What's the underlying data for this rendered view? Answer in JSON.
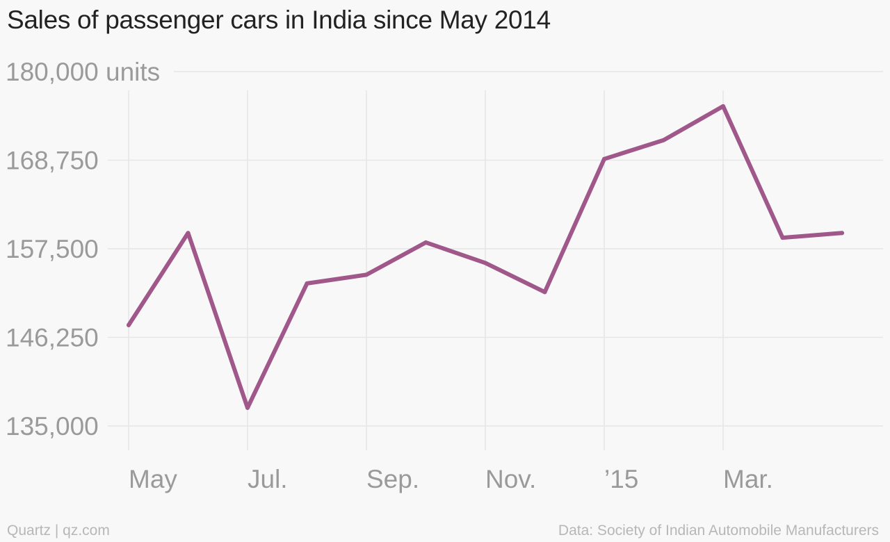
{
  "title": "Sales of passenger cars in India since May 2014",
  "footer": {
    "credit": "Quartz | qz.com",
    "source": "Data: Society of Indian Automobile Manufacturers"
  },
  "colors": {
    "line": "#a0578a",
    "grid": "#e6e6e6",
    "tick_text": "#9a9a9a",
    "title": "#222222",
    "background": "#f8f8f8"
  },
  "chart_data": {
    "type": "line",
    "title": "Sales of passenger cars in India since May 2014",
    "xlabel": "",
    "ylabel": "",
    "grid": true,
    "ylim": [
      135000,
      180000
    ],
    "y_ticks": [
      {
        "value": 135000,
        "label": "135,000"
      },
      {
        "value": 146250,
        "label": "146,250"
      },
      {
        "value": 157500,
        "label": "157,500"
      },
      {
        "value": 168750,
        "label": "168,750"
      },
      {
        "value": 180000,
        "label": "180,000 units"
      }
    ],
    "x_tick_labels": [
      "May",
      "Jul.",
      "Sep.",
      "Nov.",
      "’15",
      "Mar."
    ],
    "x": [
      "2014-05",
      "2014-06",
      "2014-07",
      "2014-08",
      "2014-09",
      "2014-10",
      "2014-11",
      "2014-12",
      "2015-01",
      "2015-02",
      "2015-03",
      "2015-04",
      "2015-05"
    ],
    "series": [
      {
        "values": [
          147800,
          159500,
          137300,
          153100,
          154200,
          158300,
          155700,
          152000,
          168900,
          171300,
          175600,
          158900,
          159500
        ]
      }
    ]
  }
}
